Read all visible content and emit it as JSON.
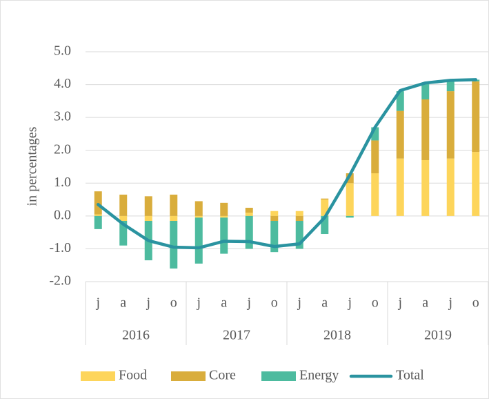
{
  "chart_data": {
    "type": "stacked-bar-line",
    "ylabel": "in percentages",
    "categories": [
      "j",
      "a",
      "j",
      "o",
      "j",
      "a",
      "j",
      "o",
      "j",
      "a",
      "j",
      "o",
      "j",
      "a",
      "j",
      "o"
    ],
    "groups": [
      "2016",
      "2017",
      "2018",
      "2019"
    ],
    "series": [
      {
        "name": "Food",
        "color": "#fdd55b",
        "values": [
          0.05,
          -0.15,
          -0.15,
          -0.15,
          -0.05,
          -0.05,
          0.1,
          0.15,
          0.15,
          0.5,
          1.0,
          1.3,
          1.75,
          1.7,
          1.75,
          1.95
        ]
      },
      {
        "name": "Core",
        "color": "#d9ad3c",
        "values": [
          0.7,
          0.65,
          0.6,
          0.65,
          0.45,
          0.4,
          0.15,
          -0.15,
          -0.15,
          0.03,
          0.3,
          1.0,
          1.45,
          1.85,
          2.05,
          2.15
        ]
      },
      {
        "name": "Energy",
        "color": "#4dbb9f",
        "values": [
          -0.4,
          -0.75,
          -1.2,
          -1.45,
          -1.4,
          -1.1,
          -1.0,
          -0.95,
          -0.85,
          -0.55,
          -0.05,
          0.4,
          0.6,
          0.5,
          0.3,
          0.05
        ]
      }
    ],
    "line": {
      "name": "Total",
      "color": "#2a93a0",
      "values": [
        0.35,
        -0.25,
        -0.75,
        -0.95,
        -0.97,
        -0.77,
        -0.78,
        -0.93,
        -0.85,
        -0.05,
        1.25,
        2.7,
        3.82,
        4.05,
        4.13,
        4.15
      ]
    },
    "ylim": [
      -2,
      5
    ],
    "yticks": [
      {
        "value": -2,
        "label": "-2.0"
      },
      {
        "value": -1,
        "label": "-1.0"
      },
      {
        "value": 0,
        "label": "0.0"
      },
      {
        "value": 1,
        "label": "1.0"
      },
      {
        "value": 2,
        "label": "2.0"
      },
      {
        "value": 3,
        "label": "3.0"
      },
      {
        "value": 4,
        "label": "4.0"
      },
      {
        "value": 5,
        "label": "5.0"
      }
    ],
    "grid": true
  }
}
